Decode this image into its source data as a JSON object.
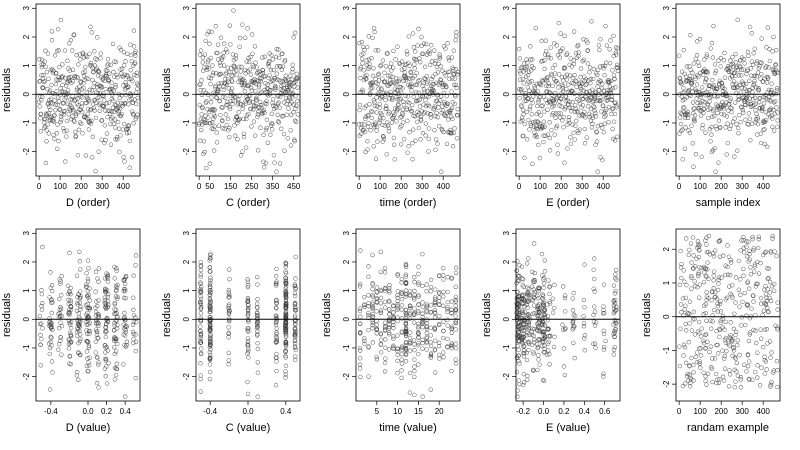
{
  "figure": {
    "background": "#ffffff",
    "point_color": "#3a3a3a",
    "zero_line_color": "#000000"
  },
  "chart_data": [
    {
      "type": "scatter",
      "xlabel": "D (order)",
      "ylabel": "residuals",
      "xlim": [
        -15,
        480
      ],
      "ylim": [
        -2.85,
        3.15
      ],
      "xticks": [
        0,
        100,
        200,
        300,
        400
      ],
      "xtick_labels": [
        "0",
        "100",
        "200",
        "300",
        "400"
      ],
      "yticks": [
        -2,
        -1,
        0,
        1,
        2,
        3
      ],
      "ytick_labels": [
        "-2",
        "-1",
        "0",
        "1",
        "2",
        "3"
      ],
      "reference_line_y": 0,
      "pattern": "order",
      "n_points": 470,
      "seed": 11,
      "grid": false
    },
    {
      "type": "scatter",
      "xlabel": "C (order)",
      "ylabel": "residuals",
      "xlim": [
        -15,
        480
      ],
      "ylim": [
        -2.85,
        3.15
      ],
      "xticks": [
        0,
        50,
        150,
        250,
        350,
        450
      ],
      "xtick_labels": [
        "0",
        "50",
        "150",
        "250",
        "350",
        "450"
      ],
      "yticks": [
        -2,
        -1,
        0,
        1,
        2,
        3
      ],
      "ytick_labels": [
        "-2",
        "-1",
        "0",
        "1",
        "2",
        "3"
      ],
      "reference_line_y": 0,
      "pattern": "order",
      "n_points": 470,
      "seed": 23,
      "grid": false
    },
    {
      "type": "scatter",
      "xlabel": "time (order)",
      "ylabel": "residuals",
      "xlim": [
        -15,
        480
      ],
      "ylim": [
        -2.85,
        3.15
      ],
      "xticks": [
        0,
        100,
        200,
        300,
        400
      ],
      "xtick_labels": [
        "0",
        "100",
        "200",
        "300",
        "400"
      ],
      "yticks": [
        -2,
        -1,
        0,
        1,
        2,
        3
      ],
      "ytick_labels": [
        "-2",
        "-1",
        "0",
        "1",
        "2",
        "3"
      ],
      "reference_line_y": 0,
      "pattern": "order",
      "n_points": 470,
      "seed": 37,
      "grid": false
    },
    {
      "type": "scatter",
      "xlabel": "E (order)",
      "ylabel": "residuals",
      "xlim": [
        -15,
        480
      ],
      "ylim": [
        -2.85,
        3.15
      ],
      "xticks": [
        0,
        100,
        200,
        300,
        400
      ],
      "xtick_labels": [
        "0",
        "100",
        "200",
        "300",
        "400"
      ],
      "yticks": [
        -2,
        -1,
        0,
        1,
        2,
        3
      ],
      "ytick_labels": [
        "-2",
        "-1",
        "0",
        "1",
        "2",
        "3"
      ],
      "reference_line_y": 0,
      "pattern": "order",
      "n_points": 470,
      "seed": 41,
      "grid": false
    },
    {
      "type": "scatter",
      "xlabel": "sample index",
      "ylabel": "residuals",
      "xlim": [
        -15,
        480
      ],
      "ylim": [
        -2.85,
        3.15
      ],
      "xticks": [
        0,
        100,
        200,
        300,
        400
      ],
      "xtick_labels": [
        "0",
        "100",
        "200",
        "300",
        "400"
      ],
      "yticks": [
        -2,
        -1,
        0,
        1,
        2,
        3
      ],
      "ytick_labels": [
        "-2",
        "-1",
        "0",
        "1",
        "2",
        "3"
      ],
      "reference_line_y": 0,
      "pattern": "order",
      "n_points": 470,
      "seed": 53,
      "grid": false
    },
    {
      "type": "scatter",
      "xlabel": "D (value)",
      "ylabel": "residuals",
      "xlim": [
        -0.56,
        0.56
      ],
      "ylim": [
        -2.85,
        3.15
      ],
      "xticks": [
        -0.4,
        0.0,
        0.2,
        0.4
      ],
      "xtick_labels": [
        "-0.4",
        "0.0",
        "0.2",
        "0.4"
      ],
      "yticks": [
        -2,
        -1,
        0,
        1,
        2,
        3
      ],
      "ytick_labels": [
        "-2",
        "-1",
        "0",
        "1",
        "2",
        "3"
      ],
      "reference_line_y": 0,
      "pattern": "grouped",
      "x_groups": [
        -0.5,
        -0.4,
        -0.3,
        -0.2,
        -0.1,
        0.0,
        0.1,
        0.2,
        0.3,
        0.4,
        0.5
      ],
      "x_weights": [
        2,
        3,
        3,
        4,
        4,
        5,
        5,
        5,
        4,
        3,
        2
      ],
      "x_jitter": 0.02,
      "n_points": 400,
      "seed": 61,
      "grid": false
    },
    {
      "type": "scatter",
      "xlabel": "C (value)",
      "ylabel": "residuals",
      "xlim": [
        -0.55,
        0.55
      ],
      "ylim": [
        -2.85,
        3.15
      ],
      "xticks": [
        -0.4,
        0.0,
        0.4
      ],
      "xtick_labels": [
        "-0.4",
        "0.0",
        "0.4"
      ],
      "yticks": [
        -2,
        -1,
        0,
        1,
        2,
        3
      ],
      "ytick_labels": [
        "-2",
        "-1",
        "0",
        "1",
        "2",
        "3"
      ],
      "reference_line_y": 0,
      "pattern": "grouped",
      "x_groups": [
        -0.5,
        -0.4,
        -0.2,
        0.0,
        0.1,
        0.3,
        0.4,
        0.5
      ],
      "x_weights": [
        4,
        8,
        2,
        3,
        2,
        3,
        7,
        4
      ],
      "x_jitter": 0.005,
      "n_points": 400,
      "seed": 71,
      "grid": false
    },
    {
      "type": "scatter",
      "xlabel": "time (value)",
      "ylabel": "residuals",
      "xlim": [
        0,
        25
      ],
      "ylim": [
        -2.85,
        3.15
      ],
      "xticks": [
        5,
        10,
        15,
        20
      ],
      "xtick_labels": [
        "5",
        "10",
        "15",
        "20"
      ],
      "yticks": [
        -2,
        -1,
        0,
        1,
        2,
        3
      ],
      "ytick_labels": [
        "-2",
        "-1",
        "0",
        "1",
        "2",
        "3"
      ],
      "reference_line_y": 0,
      "pattern": "grouped",
      "x_groups": [
        1,
        2,
        3,
        4,
        5,
        6,
        7,
        8,
        9,
        10,
        11,
        12,
        13,
        14,
        15,
        16,
        17,
        18,
        19,
        20,
        21,
        22,
        23,
        24
      ],
      "x_weights": [
        2,
        2,
        2,
        3,
        3,
        3,
        4,
        4,
        3,
        3,
        3,
        7,
        3,
        3,
        3,
        3,
        3,
        3,
        2,
        2,
        2,
        2,
        3,
        3
      ],
      "x_jitter": 0.05,
      "n_points": 420,
      "seed": 83,
      "grid": false
    },
    {
      "type": "scatter",
      "xlabel": "E (value)",
      "ylabel": "residuals",
      "xlim": [
        -0.27,
        0.75
      ],
      "ylim": [
        -2.85,
        3.15
      ],
      "xticks": [
        -0.2,
        0.0,
        0.2,
        0.4,
        0.6
      ],
      "xtick_labels": [
        "-0.2",
        "0.0",
        "0.2",
        "0.4",
        "0.6"
      ],
      "yticks": [
        -2,
        -1,
        0,
        1,
        2,
        3
      ],
      "ytick_labels": [
        "-2",
        "-1",
        "0",
        "1",
        "2",
        "3"
      ],
      "reference_line_y": 0,
      "pattern": "grouped",
      "x_groups": [
        -0.25,
        -0.2,
        -0.15,
        -0.1,
        -0.05,
        0.0,
        0.05,
        0.1,
        0.2,
        0.3,
        0.4,
        0.5,
        0.6,
        0.7
      ],
      "x_weights": [
        10,
        6,
        5,
        4,
        5,
        6,
        2,
        1,
        1,
        1,
        1,
        1,
        1,
        3
      ],
      "x_jitter": 0.015,
      "n_points": 430,
      "seed": 97,
      "grid": false
    },
    {
      "type": "scatter",
      "xlabel": "randam example",
      "ylabel": "residuals",
      "xlim": [
        -15,
        480
      ],
      "ylim": [
        -2.5,
        2.6
      ],
      "xticks": [
        0,
        100,
        200,
        300,
        400
      ],
      "xtick_labels": [
        "0",
        "100",
        "200",
        "300",
        "400"
      ],
      "yticks": [
        -2,
        -1,
        0,
        1,
        2
      ],
      "ytick_labels": [
        "-2",
        "-1",
        "0",
        "1",
        "2"
      ],
      "reference_line_y": 0,
      "pattern": "uniform",
      "n_points": 400,
      "seed": 101,
      "grid": false
    }
  ]
}
